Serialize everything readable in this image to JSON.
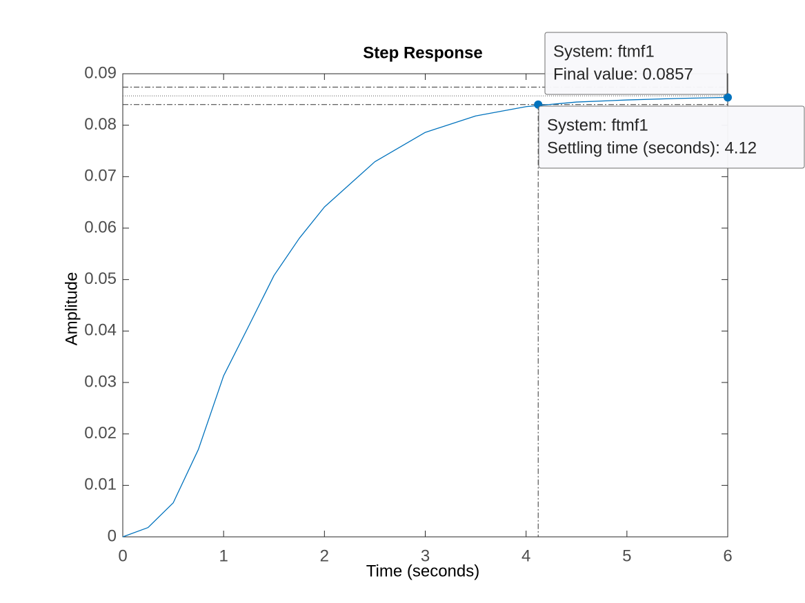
{
  "chart_data": {
    "type": "line",
    "title": "Step Response",
    "x_label": "Time (seconds)",
    "y_label": "Amplitude",
    "x": [
      0,
      0.25,
      0.5,
      0.75,
      1,
      1.25,
      1.5,
      1.75,
      2,
      2.5,
      3,
      3.5,
      4,
      4.5,
      5,
      5.5,
      6
    ],
    "series": [
      {
        "name": "ftmf1",
        "color": "#0072bd",
        "values": [
          0,
          0.0018,
          0.0066,
          0.017,
          0.0313,
          0.041,
          0.0508,
          0.058,
          0.0641,
          0.0729,
          0.0786,
          0.0818,
          0.0836,
          0.0845,
          0.0849,
          0.0852,
          0.0854
        ]
      }
    ],
    "xlim": [
      0,
      6
    ],
    "xticks": [
      0,
      1,
      2,
      3,
      4,
      5,
      6
    ],
    "ylim": [
      0,
      0.09
    ],
    "yticks": [
      0,
      0.01,
      0.02,
      0.03,
      0.04,
      0.05,
      0.06,
      0.07,
      0.08,
      0.09
    ],
    "final_value": 0.0857,
    "settling_upper": 0.0874,
    "settling_lower": 0.084,
    "settling_time": 4.12,
    "datatips": [
      {
        "lines": [
          "System: ftmf1",
          "Final value: 0.0857"
        ]
      },
      {
        "lines": [
          "System: ftmf1",
          "Settling time (seconds): 4.12"
        ]
      }
    ]
  }
}
